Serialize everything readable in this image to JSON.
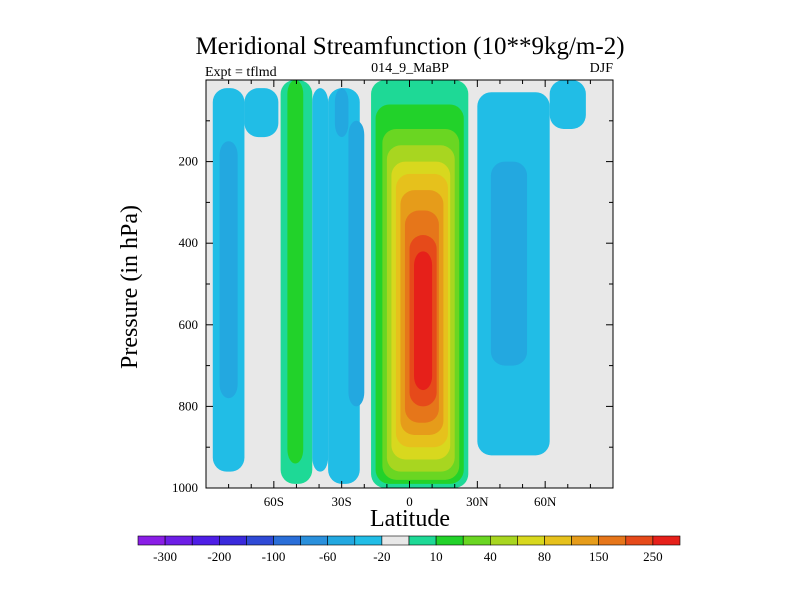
{
  "chart_data": {
    "type": "heatmap",
    "title": "Meridional Streamfunction (10**9kg/m-2)",
    "left_label": "Expt = tflmd",
    "center_label": "014_9_MaBP",
    "right_label": "DJF",
    "xlabel": "Latitude",
    "ylabel": "Pressure (in hPa)",
    "xlim": [
      -90,
      90
    ],
    "ylim": [
      1000,
      0
    ],
    "x_ticks": [
      {
        "value": -60,
        "label": "60S"
      },
      {
        "value": -30,
        "label": "30S"
      },
      {
        "value": 0,
        "label": "0"
      },
      {
        "value": 30,
        "label": "30N"
      },
      {
        "value": 60,
        "label": "60N"
      }
    ],
    "y_ticks": [
      {
        "value": 200,
        "label": "200"
      },
      {
        "value": 400,
        "label": "400"
      },
      {
        "value": 600,
        "label": "600"
      },
      {
        "value": 800,
        "label": "800"
      },
      {
        "value": 1000,
        "label": "1000"
      }
    ],
    "background_value_color": "#e8e8e8",
    "colorbar": {
      "colors": [
        "#8a1ee6",
        "#6d1ee6",
        "#4e1ee6",
        "#3a2adc",
        "#2f4ad6",
        "#2a6ed8",
        "#2a90dc",
        "#23a8e0",
        "#21bde6",
        "#e8e8e8",
        "#1ed996",
        "#22d22a",
        "#6ad622",
        "#a8d620",
        "#d8d81e",
        "#e6c11c",
        "#e69c1a",
        "#e6761a",
        "#e64a1a",
        "#e6201a"
      ],
      "labels": [
        {
          "after": 0,
          "text": "-300"
        },
        {
          "after": 2,
          "text": "-200"
        },
        {
          "after": 4,
          "text": "-100"
        },
        {
          "after": 6,
          "text": "-60"
        },
        {
          "after": 8,
          "text": "-20"
        },
        {
          "after": 10,
          "text": "10"
        },
        {
          "after": 12,
          "text": "40"
        },
        {
          "after": 14,
          "text": "80"
        },
        {
          "after": 16,
          "text": "150"
        },
        {
          "after": 18,
          "text": "250"
        }
      ]
    },
    "contour_cells": [
      {
        "lat_min": -87,
        "lat_max": -73,
        "p_top": 20,
        "p_bot": 960,
        "level": 8
      },
      {
        "lat_min": -84,
        "lat_max": -76,
        "p_top": 150,
        "p_bot": 780,
        "level": 7
      },
      {
        "lat_min": -73,
        "lat_max": -58,
        "p_top": 20,
        "p_bot": 140,
        "level": 8
      },
      {
        "lat_min": -57,
        "lat_max": -43,
        "p_top": 0,
        "p_bot": 990,
        "level": 10
      },
      {
        "lat_min": -54,
        "lat_max": -47,
        "p_top": 0,
        "p_bot": 940,
        "level": 11
      },
      {
        "lat_min": -43,
        "lat_max": -36,
        "p_top": 20,
        "p_bot": 960,
        "level": 8
      },
      {
        "lat_min": -36,
        "lat_max": -22,
        "p_top": 20,
        "p_bot": 990,
        "level": 8
      },
      {
        "lat_min": -33,
        "lat_max": -27,
        "p_top": 20,
        "p_bot": 140,
        "level": 7
      },
      {
        "lat_min": -27,
        "lat_max": -20,
        "p_top": 100,
        "p_bot": 800,
        "level": 7
      },
      {
        "lat_min": -17,
        "lat_max": 26,
        "p_top": 0,
        "p_bot": 1000,
        "level": 10
      },
      {
        "lat_min": -15,
        "lat_max": 24,
        "p_top": 60,
        "p_bot": 990,
        "level": 11
      },
      {
        "lat_min": -12,
        "lat_max": 22,
        "p_top": 120,
        "p_bot": 980,
        "level": 12
      },
      {
        "lat_min": -10,
        "lat_max": 20,
        "p_top": 160,
        "p_bot": 960,
        "level": 13
      },
      {
        "lat_min": -8,
        "lat_max": 18,
        "p_top": 200,
        "p_bot": 930,
        "level": 14
      },
      {
        "lat_min": -6,
        "lat_max": 17,
        "p_top": 230,
        "p_bot": 900,
        "level": 15
      },
      {
        "lat_min": -4,
        "lat_max": 15,
        "p_top": 270,
        "p_bot": 870,
        "level": 16
      },
      {
        "lat_min": -2,
        "lat_max": 13,
        "p_top": 320,
        "p_bot": 840,
        "level": 17
      },
      {
        "lat_min": 0,
        "lat_max": 12,
        "p_top": 380,
        "p_bot": 800,
        "level": 18
      },
      {
        "lat_min": 2,
        "lat_max": 10,
        "p_top": 420,
        "p_bot": 760,
        "level": 19
      },
      {
        "lat_min": 30,
        "lat_max": 62,
        "p_top": 30,
        "p_bot": 920,
        "level": 8
      },
      {
        "lat_min": 36,
        "lat_max": 52,
        "p_top": 200,
        "p_bot": 700,
        "level": 7
      },
      {
        "lat_min": 62,
        "lat_max": 78,
        "p_top": 0,
        "p_bot": 120,
        "level": 8
      }
    ]
  }
}
